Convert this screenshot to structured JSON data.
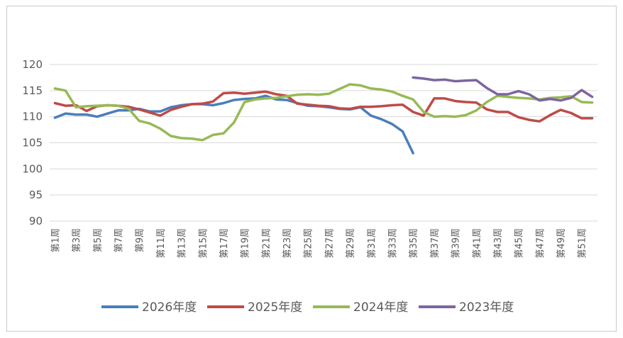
{
  "chart_data": {
    "type": "line",
    "title": "",
    "xlabel": "",
    "ylabel": "",
    "ylim": [
      90,
      120
    ],
    "yticks": [
      90,
      95,
      100,
      105,
      110,
      115,
      120
    ],
    "grid": "horizontal",
    "legend_position": "bottom",
    "x_labels": [
      "第1周",
      "第3周",
      "第5周",
      "第7周",
      "第9周",
      "第11周",
      "第13周",
      "第15周",
      "第17周",
      "第19周",
      "第21周",
      "第23周",
      "第25周",
      "第27周",
      "第29周",
      "第31周",
      "第33周",
      "第35周",
      "第37周",
      "第39周",
      "第41周",
      "第43周",
      "第45周",
      "第47周",
      "第49周",
      "第51周"
    ],
    "series": [
      {
        "name": "2026年度",
        "color": "#4a7ebb",
        "values": [
          109.8,
          110.6,
          110.4,
          110.4,
          110.0,
          110.6,
          111.2,
          111.2,
          111.5,
          111.0,
          111.0,
          111.8,
          112.2,
          112.4,
          112.4,
          112.2,
          112.6,
          113.2,
          113.4,
          113.5,
          114.0,
          113.3,
          113.2,
          112.6,
          112.1,
          112.0,
          111.8,
          111.5,
          111.4,
          111.8,
          110.2,
          109.5,
          108.6,
          107.2,
          103.0
        ]
      },
      {
        "name": "2025年度",
        "color": "#be4b48",
        "values": [
          112.6,
          112.1,
          112.2,
          111.1,
          112.0,
          112.2,
          112.1,
          111.9,
          111.4,
          110.8,
          110.2,
          111.3,
          111.9,
          112.4,
          112.5,
          112.9,
          114.5,
          114.6,
          114.4,
          114.6,
          114.8,
          114.3,
          114.0,
          112.5,
          112.3,
          112.1,
          112.0,
          111.6,
          111.5,
          111.9,
          111.9,
          112.0,
          112.2,
          112.3,
          110.9,
          110.2,
          113.5,
          113.5,
          113.0,
          112.8,
          112.7,
          111.4,
          110.9,
          110.9,
          109.9,
          109.4,
          109.1,
          110.3,
          111.3,
          110.7,
          109.7,
          109.7
        ]
      },
      {
        "name": "2024年度",
        "color": "#98b954",
        "values": [
          115.4,
          115.0,
          111.8,
          112.0,
          112.1,
          112.2,
          112.1,
          111.5,
          109.2,
          108.7,
          107.7,
          106.3,
          105.9,
          105.8,
          105.5,
          106.5,
          106.8,
          108.9,
          112.8,
          113.3,
          113.5,
          113.6,
          113.9,
          114.2,
          114.3,
          114.2,
          114.4,
          115.3,
          116.2,
          116.0,
          115.4,
          115.2,
          114.8,
          114.0,
          113.3,
          110.9,
          110.0,
          110.1,
          110.0,
          110.3,
          111.2,
          112.8,
          114.0,
          113.8,
          113.6,
          113.5,
          113.3,
          113.6,
          113.7,
          113.9,
          112.8,
          112.7
        ]
      },
      {
        "name": "2023年度",
        "color": "#7e64a0",
        "start_week": 35,
        "values": [
          117.5,
          117.3,
          117.0,
          117.1,
          116.8,
          116.9,
          117.0,
          115.5,
          114.3,
          114.3,
          114.9,
          114.3,
          113.1,
          113.4,
          113.1,
          113.6,
          115.1,
          113.8
        ]
      }
    ]
  }
}
